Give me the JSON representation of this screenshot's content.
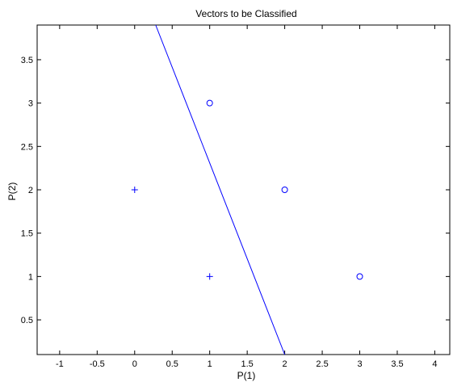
{
  "chart_data": {
    "type": "scatter",
    "title": "Vectors to be Classified",
    "xlabel": "P(1)",
    "ylabel": "P(2)",
    "xlim": [
      -1.3,
      4.2
    ],
    "ylim": [
      0.1,
      3.9
    ],
    "grid": false,
    "x_ticks": [
      "-1",
      "-0.5",
      "0",
      "0.5",
      "1",
      "1.5",
      "2",
      "2.5",
      "3",
      "3.5",
      "4"
    ],
    "y_ticks": [
      "0.5",
      "1",
      "1.5",
      "2",
      "2.5",
      "3",
      "3.5"
    ],
    "series": [
      {
        "marker": "plus",
        "color": "#0000ff",
        "points": [
          [
            0,
            2
          ],
          [
            1,
            1
          ]
        ]
      },
      {
        "marker": "circle",
        "color": "#0000ff",
        "points": [
          [
            1,
            3
          ],
          [
            2,
            2
          ],
          [
            3,
            1
          ]
        ]
      }
    ],
    "decision_boundary": {
      "color": "#0000ff",
      "points": [
        [
          0.28,
          3.9
        ],
        [
          2.0,
          0.1
        ]
      ]
    }
  }
}
